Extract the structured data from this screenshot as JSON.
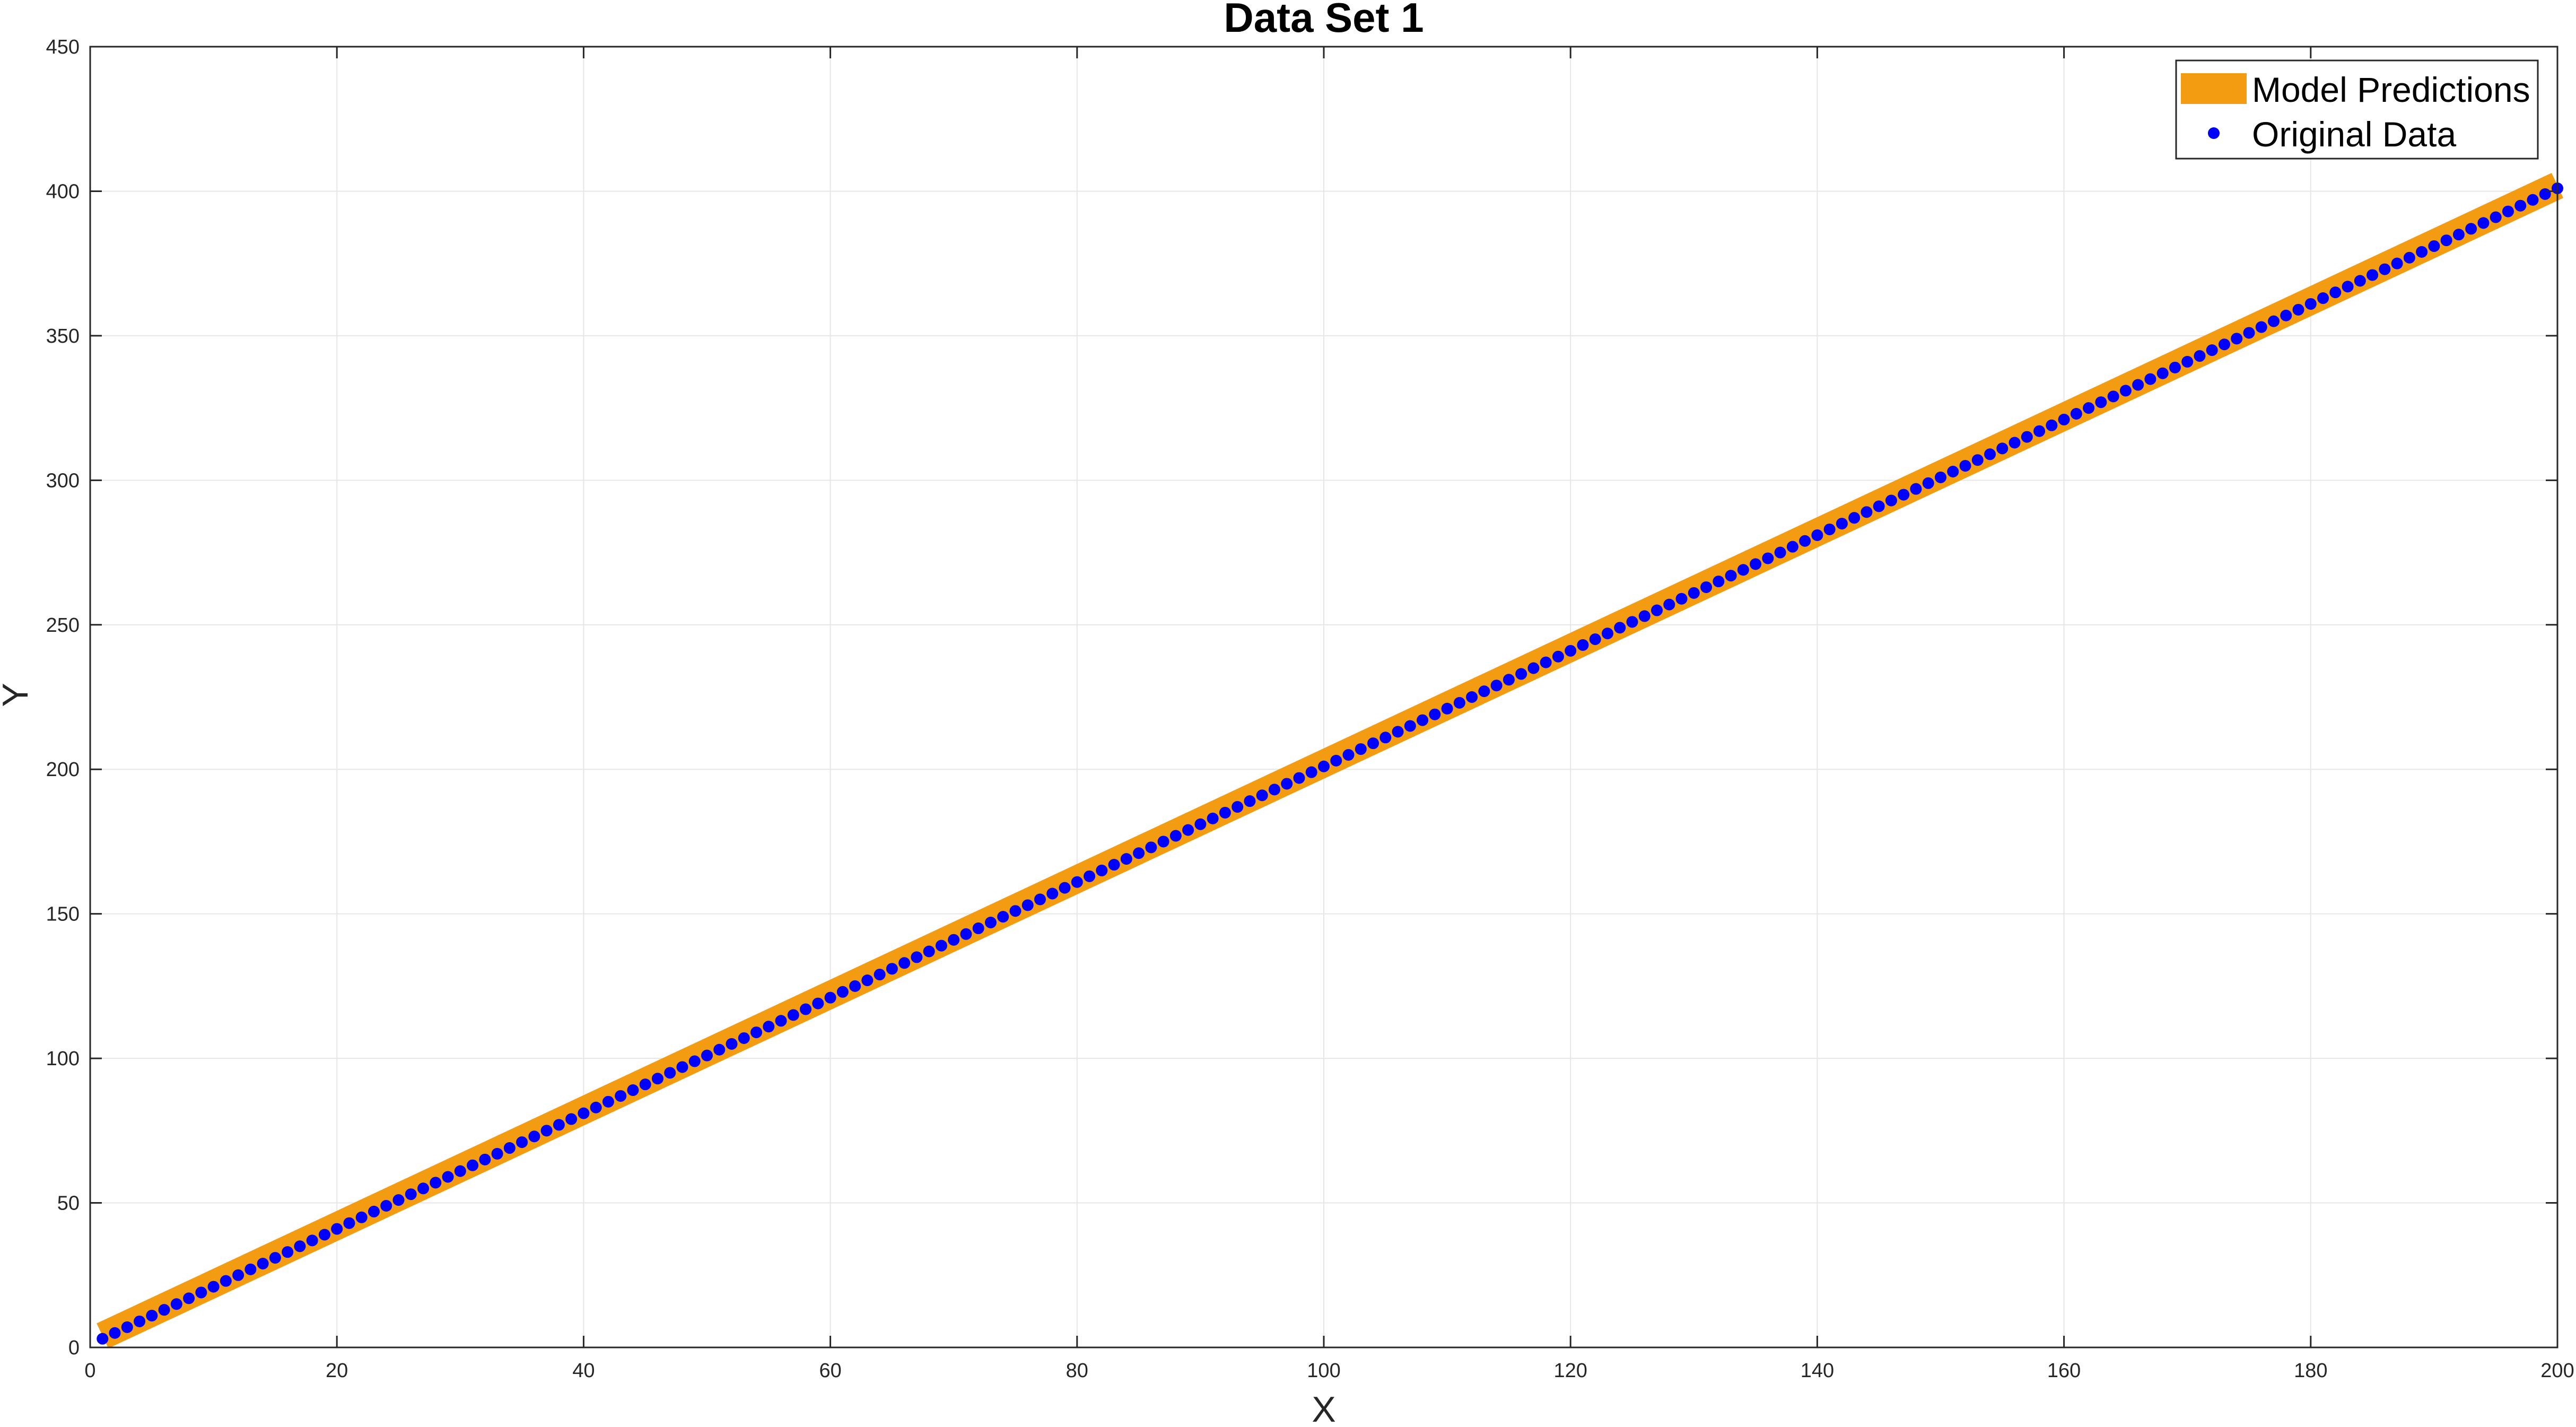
{
  "chart_data": {
    "type": "line",
    "title": "Data Set 1",
    "xlabel": "X",
    "ylabel": "Y",
    "xlim": [
      0,
      200
    ],
    "ylim": [
      0,
      450
    ],
    "xticks": [
      0,
      20,
      40,
      60,
      80,
      100,
      120,
      140,
      160,
      180,
      200
    ],
    "yticks": [
      0,
      50,
      100,
      150,
      200,
      250,
      300,
      350,
      400,
      450
    ],
    "grid": true,
    "legend_position": "top-right",
    "series": [
      {
        "name": "Model Predictions",
        "style": "thick-line",
        "color": "#F39C12",
        "x_start": 1,
        "x_end": 200,
        "slope": 2,
        "intercept": 2
      },
      {
        "name": "Original Data",
        "style": "markers",
        "color": "#0000FF",
        "x_start": 1,
        "x_end": 200,
        "x_step": 1,
        "slope": 2,
        "intercept": 1
      }
    ]
  },
  "colors": {
    "axis": "#262626",
    "grid": "#E6E6E6",
    "background": "#FFFFFF"
  }
}
